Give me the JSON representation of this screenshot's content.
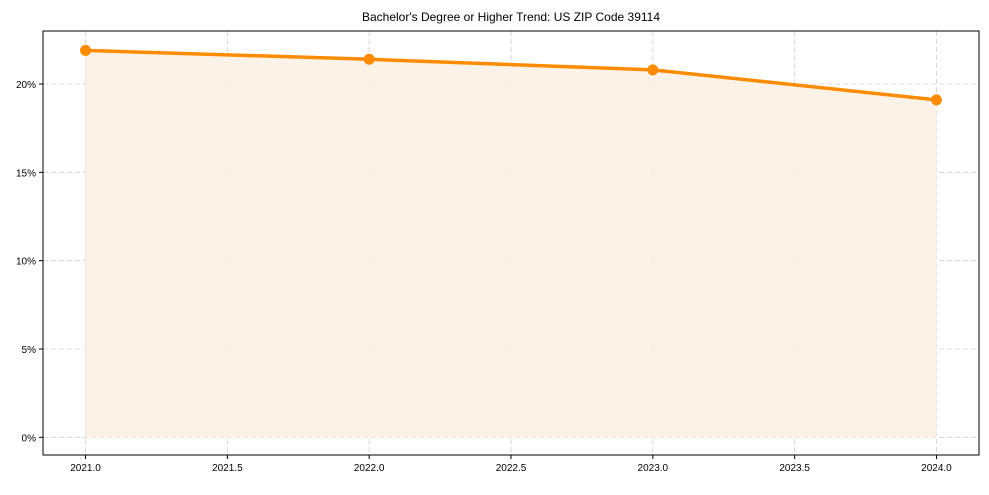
{
  "chart_data": {
    "type": "area",
    "title": "Bachelor's Degree or Higher Trend: US ZIP Code 39114",
    "xlabel": "",
    "ylabel": "",
    "x": [
      2021,
      2022,
      2023,
      2024
    ],
    "series": [
      {
        "name": "Bachelor's Degree or Higher",
        "values": [
          21.9,
          21.4,
          20.8,
          19.1
        ],
        "color": "#ff8c00"
      }
    ],
    "xlim": [
      2020.85,
      2024.15
    ],
    "ylim": [
      -1.0,
      23.0
    ],
    "xticks": [
      2021.0,
      2021.5,
      2022.0,
      2022.5,
      2023.0,
      2023.5,
      2024.0
    ],
    "xtick_labels": [
      "2021.0",
      "2021.5",
      "2022.0",
      "2022.5",
      "2023.0",
      "2023.5",
      "2024.0"
    ],
    "yticks": [
      0,
      5,
      10,
      15,
      20
    ],
    "ytick_labels": [
      "0%",
      "5%",
      "10%",
      "15%",
      "20%"
    ],
    "grid": true,
    "fill_color": "#fdf1e4"
  }
}
